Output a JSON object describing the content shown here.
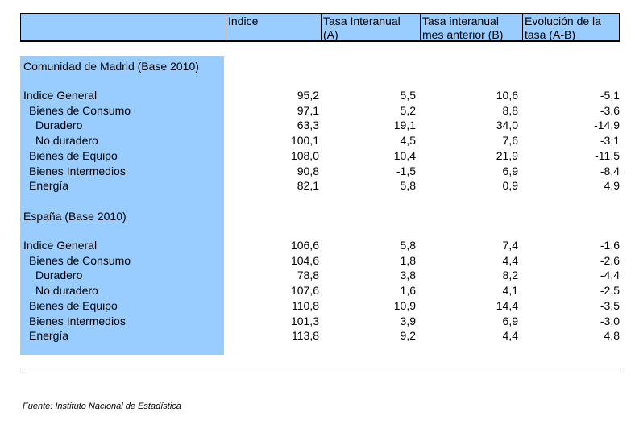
{
  "header": {
    "col_indice": "Indice",
    "col_tasa_interanual_l1": "Tasa Interanual",
    "col_tasa_interanual_l2": "(A)",
    "col_tasa_mes_l1": "Tasa interanual",
    "col_tasa_mes_l2": "mes anterior (B)",
    "col_evolucion_l1": "Evolución de la",
    "col_evolucion_l2": "tasa (A-B)"
  },
  "madrid": {
    "title": "Comunidad de Madrid (Base 2010)",
    "rows": [
      {
        "label": "Indice General",
        "indice": "95,2",
        "tasa_a": "5,5",
        "tasa_b": "10,6",
        "evol": "-5,1"
      },
      {
        "label": "Bienes de Consumo",
        "indice": "97,1",
        "tasa_a": "5,2",
        "tasa_b": "8,8",
        "evol": "-3,6"
      },
      {
        "label": "Duradero",
        "indice": "63,3",
        "tasa_a": "19,1",
        "tasa_b": "34,0",
        "evol": "-14,9"
      },
      {
        "label": "No duradero",
        "indice": "100,1",
        "tasa_a": "4,5",
        "tasa_b": "7,6",
        "evol": "-3,1"
      },
      {
        "label": "Bienes de Equipo",
        "indice": "108,0",
        "tasa_a": "10,4",
        "tasa_b": "21,9",
        "evol": "-11,5"
      },
      {
        "label": "Bienes Intermedios",
        "indice": "90,8",
        "tasa_a": "-1,5",
        "tasa_b": "6,9",
        "evol": "-8,4"
      },
      {
        "label": "Energía",
        "indice": "82,1",
        "tasa_a": "5,8",
        "tasa_b": "0,9",
        "evol": "4,9"
      }
    ]
  },
  "espana": {
    "title": "España (Base 2010)",
    "rows": [
      {
        "label": "Indice General",
        "indice": "106,6",
        "tasa_a": "5,8",
        "tasa_b": "7,4",
        "evol": "-1,6"
      },
      {
        "label": "Bienes de Consumo",
        "indice": "104,6",
        "tasa_a": "1,8",
        "tasa_b": "4,4",
        "evol": "-2,6"
      },
      {
        "label": "Duradero",
        "indice": "78,8",
        "tasa_a": "3,8",
        "tasa_b": "8,2",
        "evol": "-4,4"
      },
      {
        "label": "No duradero",
        "indice": "107,6",
        "tasa_a": "1,6",
        "tasa_b": "4,1",
        "evol": "-2,5"
      },
      {
        "label": "Bienes de Equipo",
        "indice": "110,8",
        "tasa_a": "10,9",
        "tasa_b": "14,4",
        "evol": "-3,5"
      },
      {
        "label": "Bienes Intermedios",
        "indice": "101,3",
        "tasa_a": "3,9",
        "tasa_b": "6,9",
        "evol": "-3,0"
      },
      {
        "label": "Energía",
        "indice": "113,8",
        "tasa_a": "9,2",
        "tasa_b": "4,4",
        "evol": "4,8"
      }
    ]
  },
  "source": "Fuente: Instituto Nacional de Estadística"
}
